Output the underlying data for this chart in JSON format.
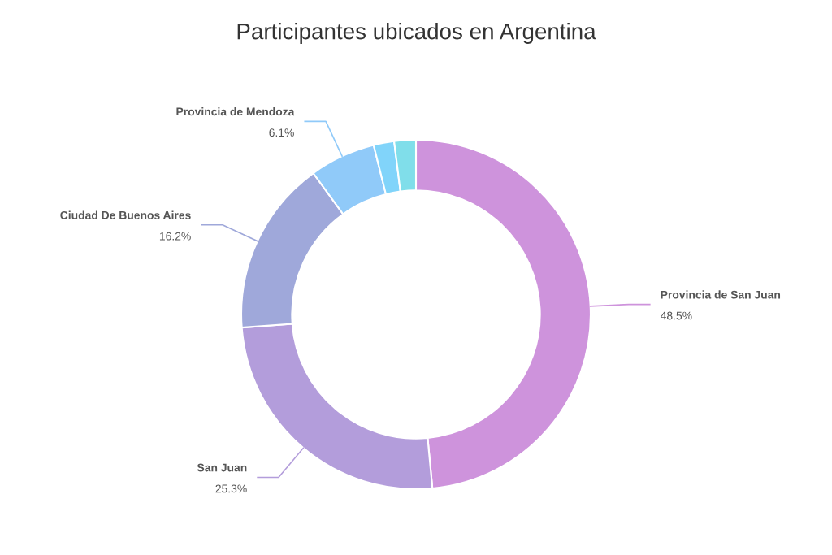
{
  "chart_data": {
    "type": "donut",
    "title": "Participantes ubicados en Argentina",
    "categories": [
      "Provincia de San Juan",
      "San Juan",
      "Ciudad De Buenos Aires",
      "Provincia de Mendoza",
      null,
      null
    ],
    "values": [
      48.5,
      25.3,
      16.2,
      6.1,
      1.9,
      2.0
    ],
    "value_labels": [
      "48.5%",
      "25.3%",
      "16.2%",
      "6.1%",
      null,
      null
    ],
    "colors": [
      "#ce93dc",
      "#b39ddb",
      "#9fa8da",
      "#90caf9",
      "#81d4fa",
      "#80deea"
    ],
    "legend": false
  }
}
